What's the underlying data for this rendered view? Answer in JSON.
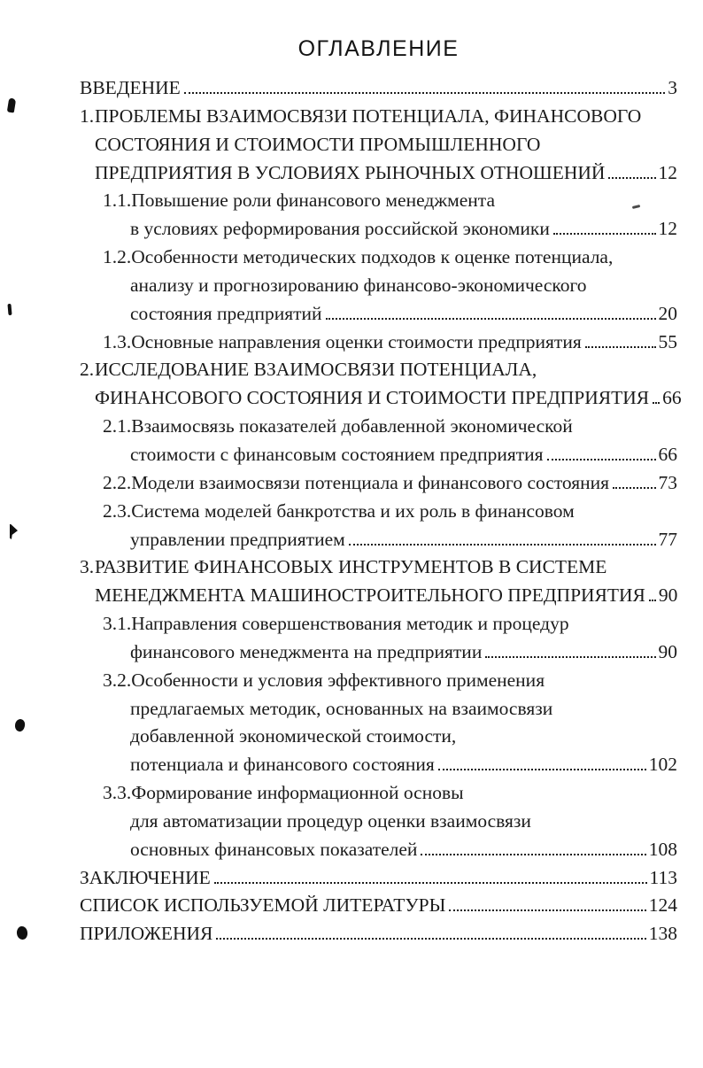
{
  "document": {
    "title": "ОГЛАВЛЕНИЕ",
    "toc_rows": [
      {
        "indent": 0,
        "num": null,
        "text": "ВВЕДЕНИЕ",
        "page": "3"
      },
      {
        "indent": 0,
        "num": "1.",
        "text": "ПРОБЛЕМЫ ВЗАИМОСВЯЗИ ПОТЕНЦИАЛА, ФИНАНСОВОГО",
        "page": null
      },
      {
        "indent": 1,
        "num": null,
        "text": "СОСТОЯНИЯ И СТОИМОСТИ ПРОМЫШЛЕННОГО",
        "page": null
      },
      {
        "indent": 1,
        "num": null,
        "text": "ПРЕДПРИЯТИЯ В УСЛОВИЯХ РЫНОЧНЫХ ОТНОШЕНИЙ",
        "page": "12"
      },
      {
        "indent": 2,
        "num": "1.1.",
        "text": "Повышение роли финансового менеджмента",
        "page": null
      },
      {
        "indent": 3,
        "num": null,
        "text": "в условиях реформирования российской экономики",
        "page": "12"
      },
      {
        "indent": 2,
        "num": "1.2.",
        "text": "Особенности методических подходов к оценке потенциала,",
        "page": null
      },
      {
        "indent": 3,
        "num": null,
        "text": "анализу и прогнозированию финансово-экономического",
        "page": null
      },
      {
        "indent": 3,
        "num": null,
        "text": "состояния предприятий",
        "page": "20"
      },
      {
        "indent": 2,
        "num": "1.3.",
        "text": "Основные направления оценки стоимости предприятия",
        "page": "55"
      },
      {
        "indent": 0,
        "num": "2.",
        "text": "ИССЛЕДОВАНИЕ ВЗАИМОСВЯЗИ ПОТЕНЦИАЛА,",
        "page": null
      },
      {
        "indent": 1,
        "num": null,
        "text": "ФИНАНСОВОГО СОСТОЯНИЯ И СТОИМОСТИ ПРЕДПРИЯТИЯ",
        "page": "66"
      },
      {
        "indent": 2,
        "num": "2.1.",
        "text": "Взаимосвязь показателей добавленной экономической",
        "page": null
      },
      {
        "indent": 3,
        "num": null,
        "text": "стоимости с финансовым состоянием предприятия",
        "page": "66"
      },
      {
        "indent": 2,
        "num": "2.2.",
        "text": "Модели взаимосвязи потенциала и финансового состояния",
        "page": "73"
      },
      {
        "indent": 2,
        "num": "2.3.",
        "text": "Система моделей банкротства и их роль в финансовом",
        "page": null
      },
      {
        "indent": 3,
        "num": null,
        "text": "управлении предприятием",
        "page": "77"
      },
      {
        "indent": 0,
        "num": "3.",
        "text": "РАЗВИТИЕ ФИНАНСОВЫХ ИНСТРУМЕНТОВ В СИСТЕМЕ",
        "page": null
      },
      {
        "indent": 1,
        "num": null,
        "text": "МЕНЕДЖМЕНТА МАШИНОСТРОИТЕЛЬНОГО ПРЕДПРИЯТИЯ",
        "page": "90"
      },
      {
        "indent": 2,
        "num": "3.1.",
        "text": "Направления совершенствования методик и процедур",
        "page": null
      },
      {
        "indent": 3,
        "num": null,
        "text": "финансового менеджмента на предприятии",
        "page": "90"
      },
      {
        "indent": 2,
        "num": "3.2.",
        "text": "Особенности и условия эффективного применения",
        "page": null
      },
      {
        "indent": 3,
        "num": null,
        "text": "предлагаемых методик, основанных на взаимосвязи",
        "page": null
      },
      {
        "indent": 3,
        "num": null,
        "text": "добавленной экономической стоимости,",
        "page": null
      },
      {
        "indent": 3,
        "num": null,
        "text": "потенциала и финансового состояния",
        "page": "102"
      },
      {
        "indent": 2,
        "num": "3.3.",
        "text": "Формирование информационной основы",
        "page": null
      },
      {
        "indent": 3,
        "num": null,
        "text": "для автоматизации процедур оценки взаимосвязи",
        "page": null
      },
      {
        "indent": 3,
        "num": null,
        "text": "основных финансовых показателей",
        "page": "108"
      },
      {
        "indent": 0,
        "num": null,
        "text": "ЗАКЛЮЧЕНИЕ",
        "page": "113"
      },
      {
        "indent": 0,
        "num": null,
        "text": "СПИСОК ИСПОЛЬЗУЕМОЙ ЛИТЕРАТУРЫ",
        "page": "124"
      },
      {
        "indent": 0,
        "num": null,
        "text": "ПРИЛОЖЕНИЯ",
        "page": "138"
      }
    ],
    "artifacts": [
      "ink-blot",
      "ink-speck",
      "ink-flag",
      "ink-dot",
      "ink-dot",
      "pencil-dash"
    ]
  }
}
